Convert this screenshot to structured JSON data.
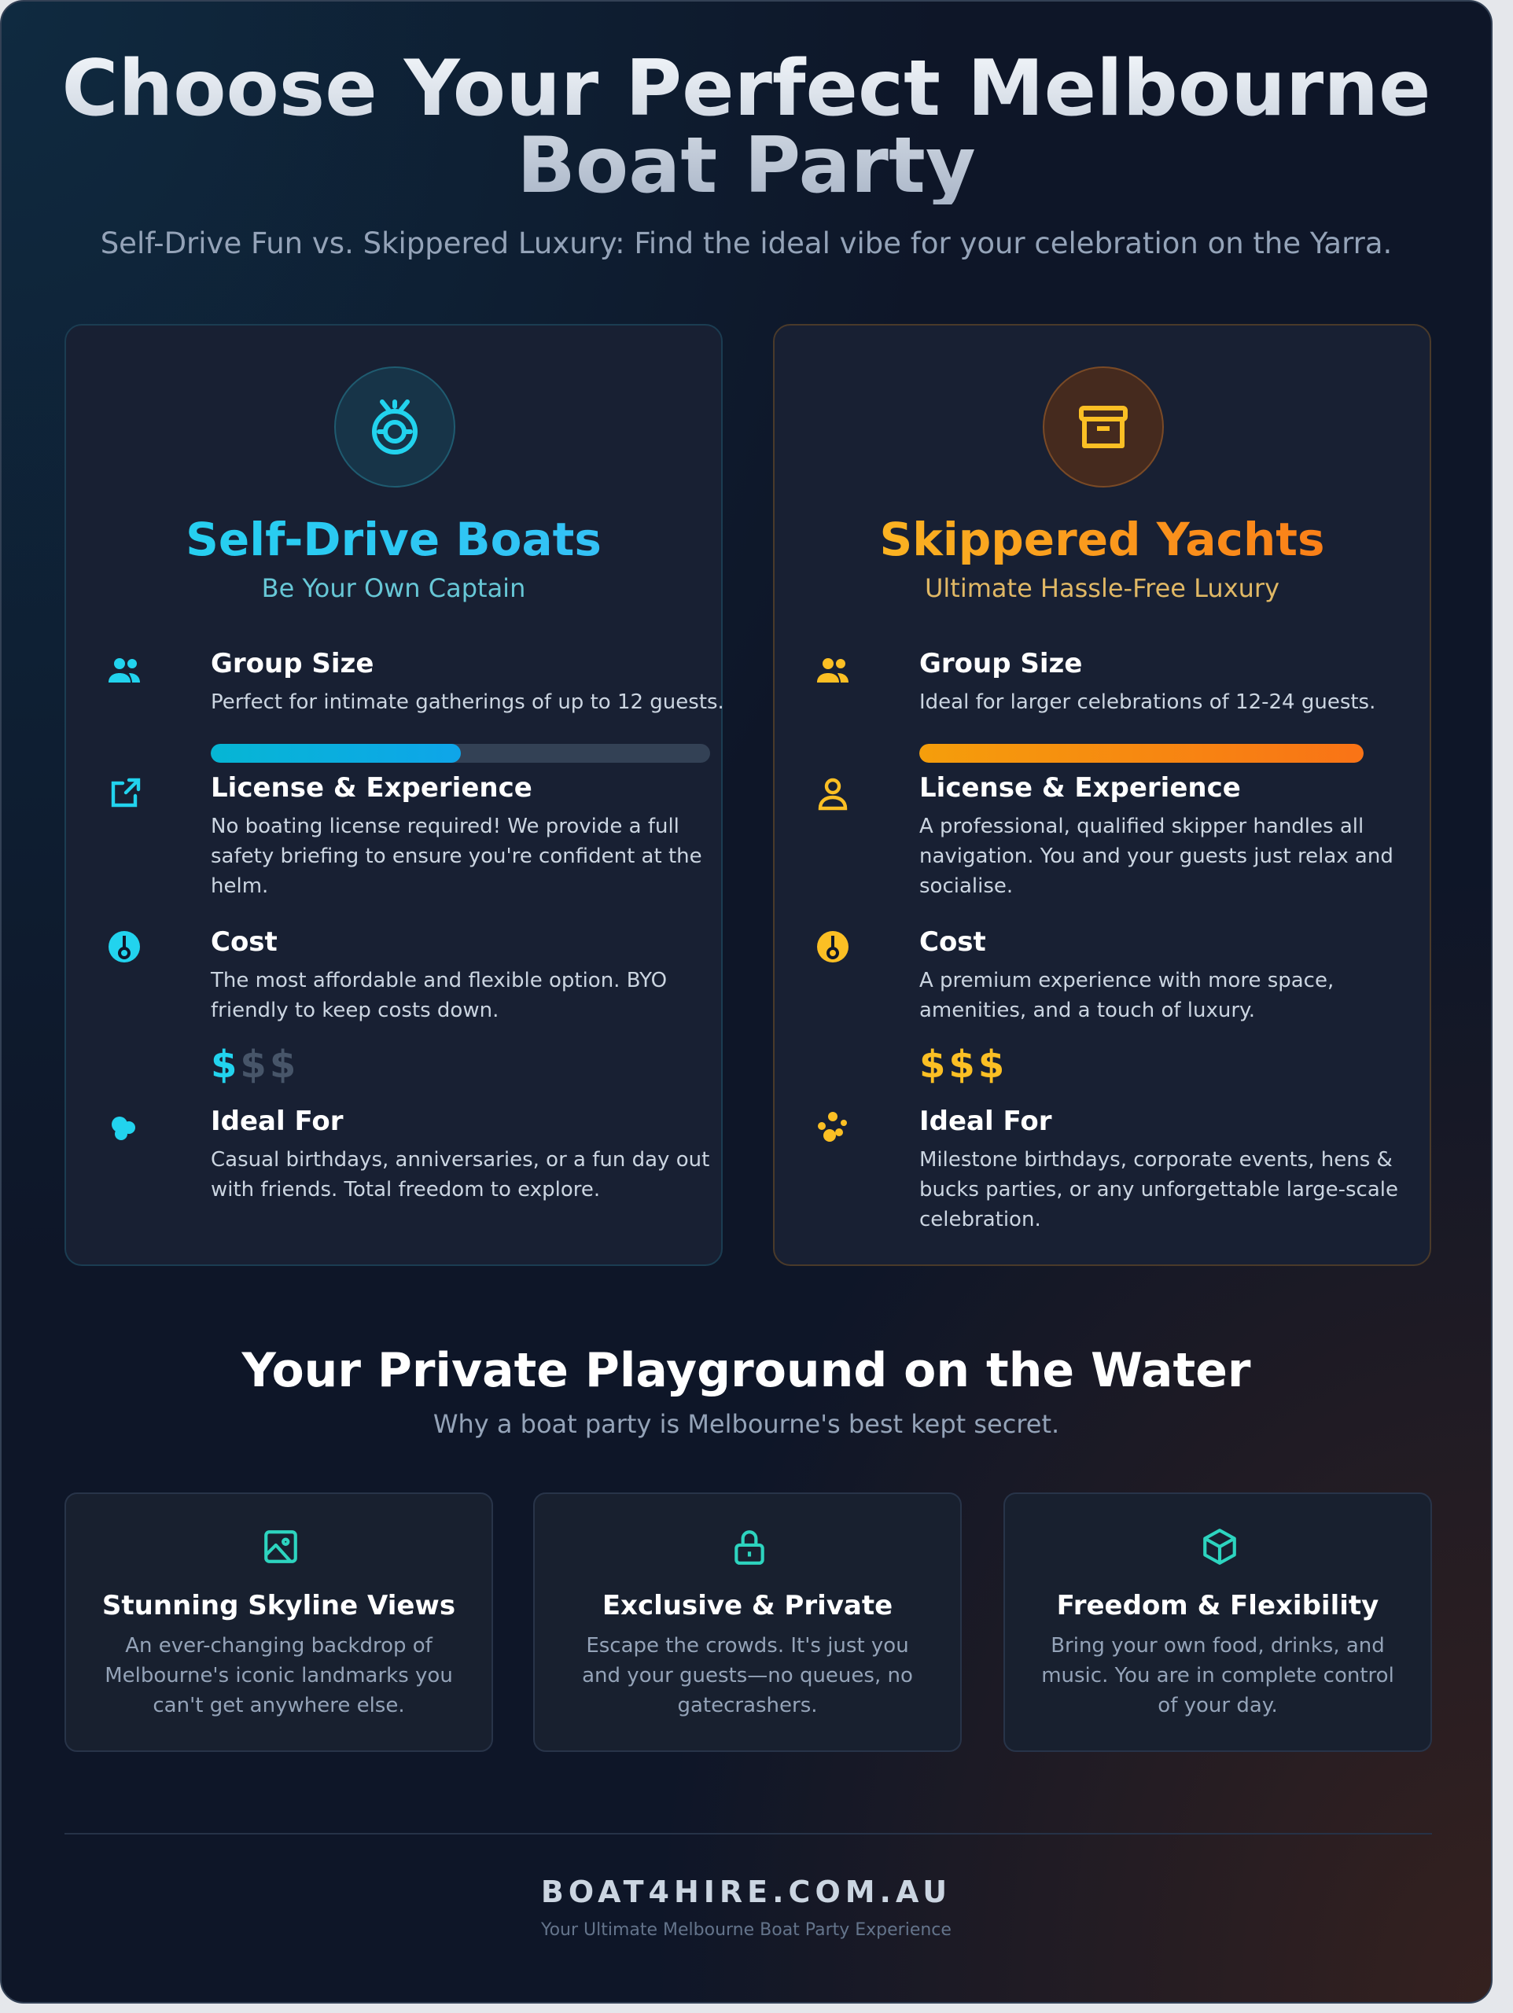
{
  "header": {
    "title_line1": "Choose Your Perfect Melbourne",
    "title_line2": "Boat Party",
    "subtitle": "Self-Drive Fun vs. Skippered Luxury: Find the ideal vibe for your celebration on the Yarra."
  },
  "options": [
    {
      "title": "Self-Drive Boats",
      "tagline": "Be Your Own Captain",
      "accent": "#22d3ee",
      "icon": "steering-wheel-icon",
      "features": [
        {
          "title": "Group Size",
          "desc": "Perfect for intimate gatherings of up to 12 guests.",
          "icon": "users-icon",
          "capacity_percent": 50
        },
        {
          "title": "License & Experience",
          "desc": "No boating license required! We provide a full safety briefing to ensure you're confident at the helm.",
          "icon": "external-link-icon"
        },
        {
          "title": "Cost",
          "desc": "The most affordable and flexible option. BYO friendly to keep costs down.",
          "icon": "cost-icon",
          "price_symbol": "$",
          "price_level": 1,
          "price_max": 3
        },
        {
          "title": "Ideal For",
          "desc": "Casual birthdays, anniversaries, or a fun day out with friends. Total freedom to explore.",
          "icon": "party-icon"
        }
      ]
    },
    {
      "title": "Skippered Yachts",
      "tagline": "Ultimate Hassle-Free Luxury",
      "accent": "#fbbf24",
      "icon": "archive-box-icon",
      "features": [
        {
          "title": "Group Size",
          "desc": "Ideal for larger celebrations of 12-24 guests.",
          "icon": "users-icon",
          "capacity_percent": 100
        },
        {
          "title": "License & Experience",
          "desc": "A professional, qualified skipper handles all navigation. You and your guests just relax and socialise.",
          "icon": "user-icon"
        },
        {
          "title": "Cost",
          "desc": "A premium experience with more space, amenities, and a touch of luxury.",
          "icon": "cost-icon",
          "price_symbol": "$",
          "price_level": 3,
          "price_max": 3
        },
        {
          "title": "Ideal For",
          "desc": "Milestone birthdays, corporate events, hens & bucks parties, or any unforgettable large-scale celebration.",
          "icon": "party-icon"
        }
      ]
    }
  ],
  "benefits": {
    "title": "Your Private Playground on the Water",
    "subtitle": "Why a boat party is Melbourne's best kept secret.",
    "items": [
      {
        "title": "Stunning Skyline Views",
        "desc": "An ever-changing backdrop of Melbourne's iconic landmarks you can't get anywhere else.",
        "icon": "image-icon"
      },
      {
        "title": "Exclusive & Private",
        "desc": "Escape the crowds. It's just you and your guests—no queues, no gatecrashers.",
        "icon": "lock-icon"
      },
      {
        "title": "Freedom & Flexibility",
        "desc": "Bring your own food, drinks, and music. You are in complete control of your day.",
        "icon": "cube-icon"
      }
    ]
  },
  "footer": {
    "brand": "BOAT4HIRE.COM.AU",
    "tagline": "Your Ultimate Melbourne Boat Party Experience"
  }
}
